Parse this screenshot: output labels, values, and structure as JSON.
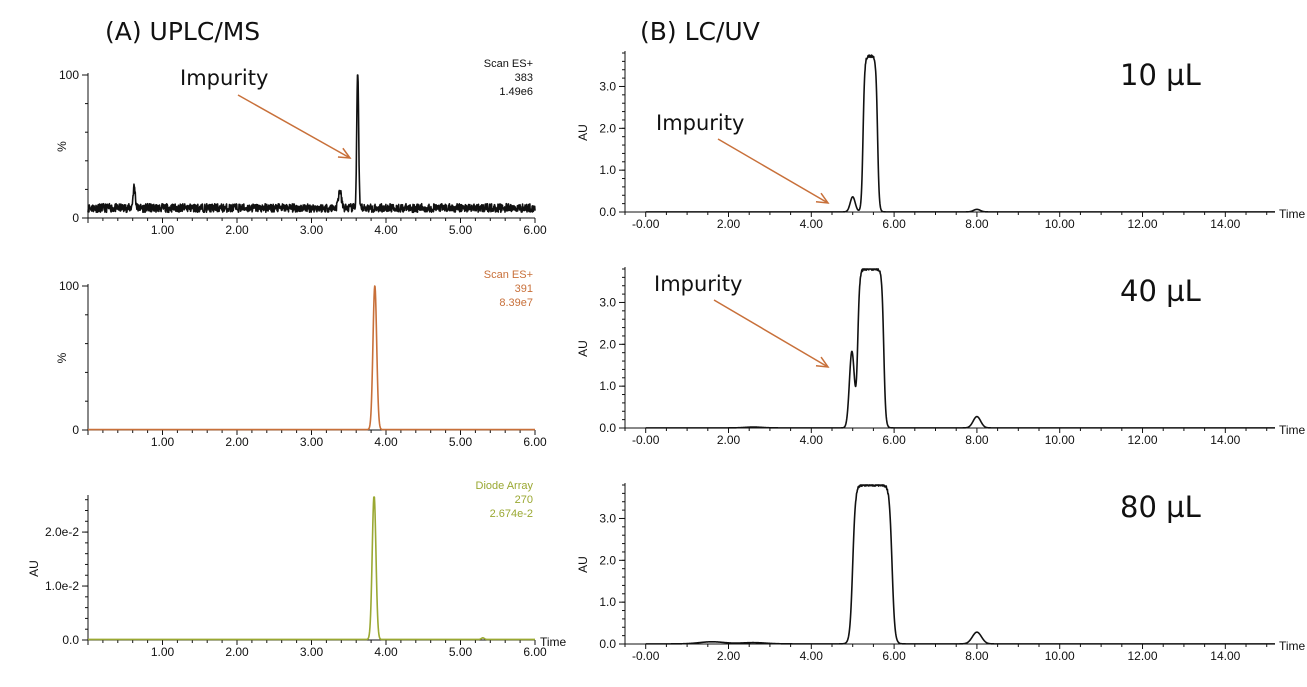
{
  "panels": {
    "A_title": "(A) UPLC/MS",
    "B_title": "(B)  LC/UV"
  },
  "colors": {
    "black": "#111111",
    "orange": "#c8703a",
    "olive": "#9aa832",
    "arrow": "#c8703a"
  },
  "chart_data": [
    {
      "type": "line",
      "id": "A1",
      "ylabel": "%",
      "xlim": [
        0,
        6.0
      ],
      "ylim": [
        0,
        100
      ],
      "x_ticks": [
        "1.00",
        "2.00",
        "3.00",
        "4.00",
        "5.00",
        "6.00"
      ],
      "y_ticks": [
        "0",
        "100"
      ],
      "info": [
        "Scan ES+",
        "383",
        "1.49e6"
      ],
      "color": "black",
      "baseline": 7,
      "noise": 3,
      "peaks": [
        {
          "x": 3.62,
          "y": 100,
          "w": 0.012
        },
        {
          "x": 3.38,
          "y": 12,
          "w": 0.02
        },
        {
          "x": 0.62,
          "y": 15,
          "w": 0.015
        }
      ],
      "annotation": {
        "text": "Impurity"
      }
    },
    {
      "type": "line",
      "id": "A2",
      "ylabel": "%",
      "xlim": [
        0,
        6.0
      ],
      "ylim": [
        0,
        100
      ],
      "x_ticks": [
        "1.00",
        "2.00",
        "3.00",
        "4.00",
        "5.00",
        "6.00"
      ],
      "y_ticks": [
        "0",
        "100"
      ],
      "info": [
        "Scan ES+",
        "391",
        "8.39e7"
      ],
      "color": "orange",
      "baseline": 0.3,
      "noise": 0,
      "peaks": [
        {
          "x": 3.85,
          "y": 100,
          "w": 0.025
        }
      ]
    },
    {
      "type": "line",
      "id": "A3",
      "ylabel": "AU",
      "xlabel": "Time",
      "xlim": [
        0,
        6.0
      ],
      "ylim": [
        0,
        0.0265
      ],
      "x_ticks": [
        "1.00",
        "2.00",
        "3.00",
        "4.00",
        "5.00",
        "6.00"
      ],
      "y_ticks": [
        "0.0",
        "1.0e-2",
        "2.0e-2"
      ],
      "y_tick_values": [
        0,
        0.01,
        0.02
      ],
      "info": [
        "Diode Array",
        "270",
        "2.674e-2"
      ],
      "color": "olive",
      "baseline": 0.0001,
      "noise": 0,
      "peaks": [
        {
          "x": 3.84,
          "y": 0.02674,
          "w": 0.025
        },
        {
          "x": 5.3,
          "y": 0.0003,
          "w": 0.02
        }
      ]
    },
    {
      "type": "line",
      "id": "B1",
      "ylabel": "AU",
      "xlabel": "Time",
      "xlim": [
        -0.5,
        15.2
      ],
      "ylim": [
        0,
        3.8
      ],
      "x_ticks": [
        "-0.00",
        "2.00",
        "4.00",
        "6.00",
        "8.00",
        "10.00",
        "12.00",
        "14.00"
      ],
      "y_ticks": [
        "0.0",
        "1.0",
        "2.0",
        "3.0"
      ],
      "y_tick_values": [
        0,
        1,
        2,
        3
      ],
      "label": "10 µL",
      "color": "black",
      "plateau": {
        "start": 5.25,
        "end": 5.6,
        "height": 3.72,
        "rise": 0.06
      },
      "peaks": [
        {
          "x": 5.0,
          "y": 0.36,
          "w": 0.06
        },
        {
          "x": 8.0,
          "y": 0.06,
          "w": 0.08
        }
      ],
      "annotation": {
        "text": "Impurity"
      }
    },
    {
      "type": "line",
      "id": "B2",
      "ylabel": "AU",
      "xlabel": "Time",
      "xlim": [
        -0.5,
        15.2
      ],
      "ylim": [
        0,
        3.8
      ],
      "x_ticks": [
        "-0.00",
        "2.00",
        "4.00",
        "6.00",
        "8.00",
        "10.00",
        "12.00",
        "14.00"
      ],
      "y_ticks": [
        "0.0",
        "1.0",
        "2.0",
        "3.0"
      ],
      "y_tick_values": [
        0,
        1,
        2,
        3
      ],
      "label": "40 µL",
      "color": "black",
      "plateau": {
        "start": 5.12,
        "end": 5.75,
        "height": 3.8,
        "rise": 0.07
      },
      "peaks": [
        {
          "x": 4.98,
          "y": 1.82,
          "w": 0.06
        },
        {
          "x": 8.0,
          "y": 0.27,
          "w": 0.09
        },
        {
          "x": 2.6,
          "y": 0.02,
          "w": 0.2
        }
      ],
      "annotation": {
        "text": "Impurity"
      }
    },
    {
      "type": "line",
      "id": "B3",
      "ylabel": "AU",
      "xlabel": "Time",
      "xlim": [
        -0.5,
        15.2
      ],
      "ylim": [
        0,
        3.8
      ],
      "x_ticks": [
        "-0.00",
        "2.00",
        "4.00",
        "6.00",
        "8.00",
        "10.00",
        "12.00",
        "14.00"
      ],
      "y_ticks": [
        "0.0",
        "1.0",
        "2.0",
        "3.0"
      ],
      "y_tick_values": [
        0,
        1,
        2,
        3
      ],
      "label": "80 µL",
      "color": "black",
      "plateau": {
        "start": 5.0,
        "end": 5.95,
        "height": 3.8,
        "rise": 0.1
      },
      "peaks": [
        {
          "x": 8.0,
          "y": 0.28,
          "w": 0.11
        },
        {
          "x": 1.6,
          "y": 0.05,
          "w": 0.3
        },
        {
          "x": 2.6,
          "y": 0.03,
          "w": 0.3
        }
      ]
    }
  ]
}
